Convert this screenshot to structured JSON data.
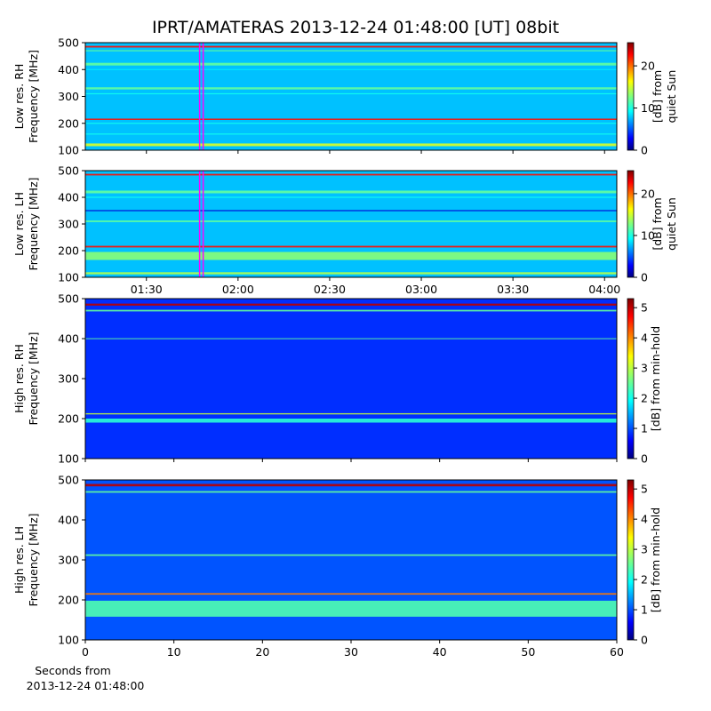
{
  "chart_data": [
    {
      "type": "spectrogram",
      "title": "IPRT/AMATERAS 2013-12-24 01:48:00 [UT]   08bit",
      "ylabel": [
        "Low res. RH",
        "Frequency [MHz]"
      ],
      "ylim": [
        100,
        500
      ],
      "yticks": [
        100,
        200,
        300,
        400,
        500
      ],
      "xlim": [
        70,
        244
      ],
      "marker_x": 108,
      "marker_color": "#ff00ff",
      "background_db": 8,
      "bands": [
        {
          "freq": 485,
          "width": 6,
          "db": 22
        },
        {
          "freq": 470,
          "width": 4,
          "db": 12
        },
        {
          "freq": 420,
          "width": 10,
          "db": 12
        },
        {
          "freq": 400,
          "width": 4,
          "db": 9
        },
        {
          "freq": 330,
          "width": 8,
          "db": 12
        },
        {
          "freq": 310,
          "width": 4,
          "db": 10
        },
        {
          "freq": 215,
          "width": 5,
          "db": 22
        },
        {
          "freq": 200,
          "width": 4,
          "db": 10
        },
        {
          "freq": 160,
          "width": 4,
          "db": 10
        },
        {
          "freq": 120,
          "width": 10,
          "db": 15
        }
      ],
      "colorbar": {
        "label": [
          "[dB] from",
          "quiet Sun"
        ],
        "lim": [
          0,
          25.5
        ],
        "ticks": [
          0,
          10,
          20
        ]
      }
    },
    {
      "type": "spectrogram",
      "ylabel": [
        "Low res. LH",
        "Frequency [MHz]"
      ],
      "ylim": [
        100,
        500
      ],
      "yticks": [
        100,
        200,
        300,
        400,
        500
      ],
      "xlim": [
        70,
        244
      ],
      "marker_x": 108,
      "marker_color": "#ff00ff",
      "background_db": 8,
      "xticks": [
        {
          "value": 90,
          "label": "01:30"
        },
        {
          "value": 120,
          "label": "02:00"
        },
        {
          "value": 150,
          "label": "02:30"
        },
        {
          "value": 180,
          "label": "03:00"
        },
        {
          "value": 210,
          "label": "03:30"
        },
        {
          "value": 240,
          "label": "04:00"
        }
      ],
      "bands": [
        {
          "freq": 485,
          "width": 6,
          "db": 22
        },
        {
          "freq": 420,
          "width": 10,
          "db": 12
        },
        {
          "freq": 400,
          "width": 4,
          "db": 10
        },
        {
          "freq": 350,
          "width": 4,
          "db": 2
        },
        {
          "freq": 310,
          "width": 6,
          "db": 12
        },
        {
          "freq": 215,
          "width": 6,
          "db": 22
        },
        {
          "freq": 180,
          "width": 30,
          "db": 13
        },
        {
          "freq": 115,
          "width": 8,
          "db": 14
        }
      ],
      "colorbar": {
        "label": [
          "[dB] from",
          "quiet Sun"
        ],
        "lim": [
          0,
          25.5
        ],
        "ticks": [
          0,
          10,
          20
        ]
      }
    },
    {
      "type": "spectrogram",
      "ylabel": [
        "High res. RH",
        "Frequency [MHz]"
      ],
      "ylim": [
        100,
        500
      ],
      "yticks": [
        100,
        200,
        300,
        400,
        500
      ],
      "xlim": [
        0,
        60
      ],
      "background_db": 0.9,
      "bands": [
        {
          "freq": 485,
          "width": 5,
          "db": 5
        },
        {
          "freq": 470,
          "width": 4,
          "db": 2.5
        },
        {
          "freq": 400,
          "width": 2,
          "db": 2.5
        },
        {
          "freq": 212,
          "width": 3,
          "db": 3
        },
        {
          "freq": 195,
          "width": 10,
          "db": 2.2
        }
      ],
      "colorbar": {
        "label": [
          "[dB] from min-hold"
        ],
        "lim": [
          0,
          5.3
        ],
        "ticks": [
          0,
          1,
          2,
          3,
          4,
          5
        ]
      }
    },
    {
      "type": "spectrogram",
      "ylabel": [
        "High res. LH",
        "Frequency [MHz]"
      ],
      "ylim": [
        100,
        500
      ],
      "yticks": [
        100,
        200,
        300,
        400,
        500
      ],
      "xlim": [
        0,
        60
      ],
      "xticks": [
        0,
        10,
        20,
        30,
        40,
        50,
        60
      ],
      "xlabel": [
        "Seconds from",
        "2013-12-24 01:48:00"
      ],
      "background_db": 1.1,
      "bands": [
        {
          "freq": 487,
          "width": 6,
          "db": 5
        },
        {
          "freq": 470,
          "width": 4,
          "db": 2.5
        },
        {
          "freq": 312,
          "width": 4,
          "db": 2.5
        },
        {
          "freq": 215,
          "width": 4,
          "db": 4
        },
        {
          "freq": 178,
          "width": 40,
          "db": 2.4
        }
      ],
      "colorbar": {
        "label": [
          "[dB] from min-hold"
        ],
        "lim": [
          0,
          5.3
        ],
        "ticks": [
          0,
          1,
          2,
          3,
          4,
          5
        ]
      }
    }
  ]
}
